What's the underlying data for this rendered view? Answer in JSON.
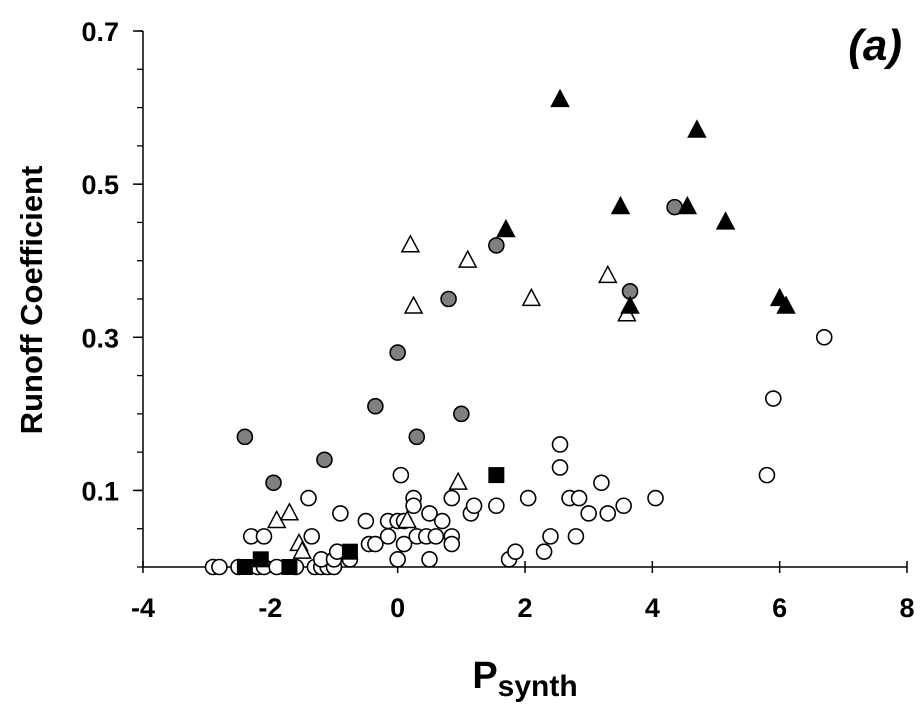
{
  "chart_data": {
    "type": "scatter",
    "title": "",
    "panel_label": "(a)",
    "xlabel": "P",
    "xlabel_sub": "synth",
    "ylabel": "Runoff Coefficient",
    "xlim": [
      -4,
      8
    ],
    "ylim": [
      0,
      0.7
    ],
    "x_ticks": [
      "-4",
      "-2",
      "0",
      "2",
      "4",
      "6",
      "8"
    ],
    "x_tick_values": [
      -4,
      -2,
      0,
      2,
      4,
      6,
      8
    ],
    "y_ticks": [
      "0.1",
      "0.3",
      "0.5",
      "0.7"
    ],
    "y_tick_values": [
      0.1,
      0.3,
      0.5,
      0.7
    ],
    "y_minor_step": 0.05,
    "grid": false,
    "legend": "none",
    "series": [
      {
        "marker": "circle-open",
        "color": "#ffffff",
        "stroke": "#000000",
        "points": [
          [
            -2.9,
            0
          ],
          [
            -2.8,
            0
          ],
          [
            -2.5,
            0
          ],
          [
            -2.2,
            0
          ],
          [
            -2.1,
            0
          ],
          [
            -1.9,
            0
          ],
          [
            -1.6,
            0
          ],
          [
            -1.3,
            0
          ],
          [
            -1.2,
            0
          ],
          [
            -1.1,
            0
          ],
          [
            -1.0,
            0
          ],
          [
            -2.3,
            0.04
          ],
          [
            -2.1,
            0.04
          ],
          [
            -1.4,
            0.09
          ],
          [
            -1.35,
            0.04
          ],
          [
            -1.2,
            0.01
          ],
          [
            -1.0,
            0.01
          ],
          [
            -0.95,
            0.02
          ],
          [
            -0.9,
            0.07
          ],
          [
            -0.75,
            0.01
          ],
          [
            -0.5,
            0.06
          ],
          [
            -0.45,
            0.03
          ],
          [
            -0.35,
            0.03
          ],
          [
            -0.15,
            0.06
          ],
          [
            -0.15,
            0.04
          ],
          [
            0.0,
            0.01
          ],
          [
            0.0,
            0.06
          ],
          [
            0.05,
            0.12
          ],
          [
            0.1,
            0.06
          ],
          [
            0.1,
            0.03
          ],
          [
            0.25,
            0.09
          ],
          [
            0.25,
            0.08
          ],
          [
            0.3,
            0.04
          ],
          [
            0.45,
            0.04
          ],
          [
            0.5,
            0.07
          ],
          [
            0.5,
            0.01
          ],
          [
            0.6,
            0.04
          ],
          [
            0.7,
            0.06
          ],
          [
            0.85,
            0.04
          ],
          [
            0.85,
            0.09
          ],
          [
            0.85,
            0.03
          ],
          [
            1.15,
            0.07
          ],
          [
            1.2,
            0.08
          ],
          [
            1.55,
            0.08
          ],
          [
            1.75,
            0.01
          ],
          [
            1.85,
            0.02
          ],
          [
            2.05,
            0.09
          ],
          [
            2.3,
            0.02
          ],
          [
            2.4,
            0.04
          ],
          [
            2.55,
            0.16
          ],
          [
            2.55,
            0.13
          ],
          [
            2.7,
            0.09
          ],
          [
            2.8,
            0.04
          ],
          [
            2.85,
            0.09
          ],
          [
            3.0,
            0.07
          ],
          [
            3.2,
            0.11
          ],
          [
            3.3,
            0.07
          ],
          [
            3.55,
            0.08
          ],
          [
            4.05,
            0.09
          ],
          [
            5.8,
            0.12
          ],
          [
            5.9,
            0.22
          ],
          [
            6.7,
            0.3
          ]
        ]
      },
      {
        "marker": "circle-filled",
        "color": "#808080",
        "stroke": "#000000",
        "points": [
          [
            -2.4,
            0.17
          ],
          [
            -1.95,
            0.11
          ],
          [
            -1.15,
            0.14
          ],
          [
            -0.35,
            0.21
          ],
          [
            0.0,
            0.28
          ],
          [
            0.3,
            0.17
          ],
          [
            0.8,
            0.35
          ],
          [
            1.0,
            0.2
          ],
          [
            1.55,
            0.42
          ],
          [
            3.65,
            0.36
          ],
          [
            4.35,
            0.47
          ]
        ]
      },
      {
        "marker": "triangle-open",
        "color": "#ffffff",
        "stroke": "#000000",
        "points": [
          [
            -1.9,
            0.06
          ],
          [
            -1.7,
            0.07
          ],
          [
            -1.55,
            0.03
          ],
          [
            -1.5,
            0.02
          ],
          [
            0.15,
            0.06
          ],
          [
            0.2,
            0.42
          ],
          [
            0.25,
            0.34
          ],
          [
            0.95,
            0.11
          ],
          [
            1.1,
            0.4
          ],
          [
            2.1,
            0.35
          ],
          [
            3.3,
            0.38
          ],
          [
            3.6,
            0.33
          ]
        ]
      },
      {
        "marker": "triangle-filled",
        "color": "#000000",
        "stroke": "#000000",
        "points": [
          [
            1.7,
            0.44
          ],
          [
            2.55,
            0.61
          ],
          [
            3.5,
            0.47
          ],
          [
            3.65,
            0.34
          ],
          [
            4.55,
            0.47
          ],
          [
            4.7,
            0.57
          ],
          [
            5.15,
            0.45
          ],
          [
            6.0,
            0.35
          ],
          [
            6.1,
            0.34
          ]
        ]
      },
      {
        "marker": "square-filled",
        "color": "#000000",
        "stroke": "#000000",
        "points": [
          [
            -2.4,
            0.0
          ],
          [
            -2.15,
            0.01
          ],
          [
            -1.7,
            0.0
          ],
          [
            -0.75,
            0.02
          ],
          [
            1.55,
            0.12
          ]
        ]
      }
    ]
  }
}
